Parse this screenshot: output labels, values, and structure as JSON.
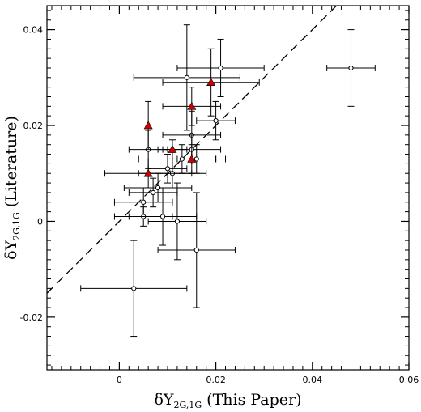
{
  "chart_data": {
    "type": "scatter",
    "xlabel": {
      "symbol": "δY",
      "subscript": "2G,1G",
      "suffix": " (This Paper)"
    },
    "ylabel": {
      "symbol": "δY",
      "subscript": "2G,1G",
      "suffix": "  (Literature)"
    },
    "xlim": [
      -0.015,
      0.06
    ],
    "ylim": [
      -0.031,
      0.045
    ],
    "x_major_ticks": [
      0,
      0.02,
      0.04,
      0.06
    ],
    "x_tick_labels": [
      "0",
      "0.02",
      "0.04",
      "0.06"
    ],
    "y_major_ticks": [
      -0.02,
      0,
      0.02,
      0.04
    ],
    "y_tick_labels": [
      "-0.02",
      "0",
      "0.02",
      "0.04"
    ],
    "x_minor_step": 0.002,
    "y_minor_step": 0.002,
    "grid": false,
    "legend": "none",
    "reference_line": {
      "style": "dashed",
      "slope": 1,
      "intercept": 0
    },
    "series": [
      {
        "marker": "open-circle",
        "color": "#000000",
        "points": [
          {
            "x": 0.048,
            "y": 0.032,
            "xerr": 0.005,
            "yerr": 0.008
          },
          {
            "x": 0.021,
            "y": 0.032,
            "xerr": 0.009,
            "yerr": 0.006
          },
          {
            "x": 0.014,
            "y": 0.03,
            "xerr": 0.011,
            "yerr": 0.011
          },
          {
            "x": 0.02,
            "y": 0.021,
            "xerr": 0.004,
            "yerr": 0.004
          },
          {
            "x": 0.015,
            "y": 0.018,
            "xerr": 0.006,
            "yerr": 0.005
          },
          {
            "x": 0.015,
            "y": 0.015,
            "xerr": 0.006,
            "yerr": 0.003
          },
          {
            "x": 0.013,
            "y": 0.013,
            "xerr": 0.009,
            "yerr": 0.003
          },
          {
            "x": 0.016,
            "y": 0.013,
            "xerr": 0.004,
            "yerr": 0.003
          },
          {
            "x": 0.01,
            "y": 0.011,
            "xerr": 0.004,
            "yerr": 0.003
          },
          {
            "x": 0.011,
            "y": 0.01,
            "xerr": 0.007,
            "yerr": 0.003
          },
          {
            "x": 0.008,
            "y": 0.007,
            "xerr": 0.007,
            "yerr": 0.003
          },
          {
            "x": 0.007,
            "y": 0.006,
            "xerr": 0.005,
            "yerr": 0.003
          },
          {
            "x": 0.005,
            "y": 0.004,
            "xerr": 0.006,
            "yerr": 0.003
          },
          {
            "x": 0.005,
            "y": 0.001,
            "xerr": 0.006,
            "yerr": 0.002
          },
          {
            "x": 0.009,
            "y": 0.001,
            "xerr": 0.007,
            "yerr": 0.006
          },
          {
            "x": 0.012,
            "y": 0.0,
            "xerr": 0.006,
            "yerr": 0.008
          },
          {
            "x": 0.016,
            "y": -0.006,
            "xerr": 0.008,
            "yerr": 0.012
          },
          {
            "x": 0.003,
            "y": -0.014,
            "xerr": 0.011,
            "yerr": 0.01
          },
          {
            "x": 0.006,
            "y": 0.015,
            "xerr": 0.004,
            "yerr": 0.004
          }
        ]
      },
      {
        "marker": "filled-triangle",
        "color": "#cc0000",
        "points": [
          {
            "x": 0.006,
            "y": 0.02,
            "xerr": 0.0,
            "yerr": 0.005
          },
          {
            "x": 0.019,
            "y": 0.029,
            "xerr": 0.01,
            "yerr": 0.007
          },
          {
            "x": 0.015,
            "y": 0.024,
            "xerr": 0.006,
            "yerr": 0.004
          },
          {
            "x": 0.011,
            "y": 0.015,
            "xerr": 0.003,
            "yerr": 0.002
          },
          {
            "x": 0.015,
            "y": 0.013,
            "xerr": 0.005,
            "yerr": 0.003
          },
          {
            "x": 0.006,
            "y": 0.01,
            "xerr": 0.009,
            "yerr": 0.003
          }
        ]
      }
    ]
  }
}
